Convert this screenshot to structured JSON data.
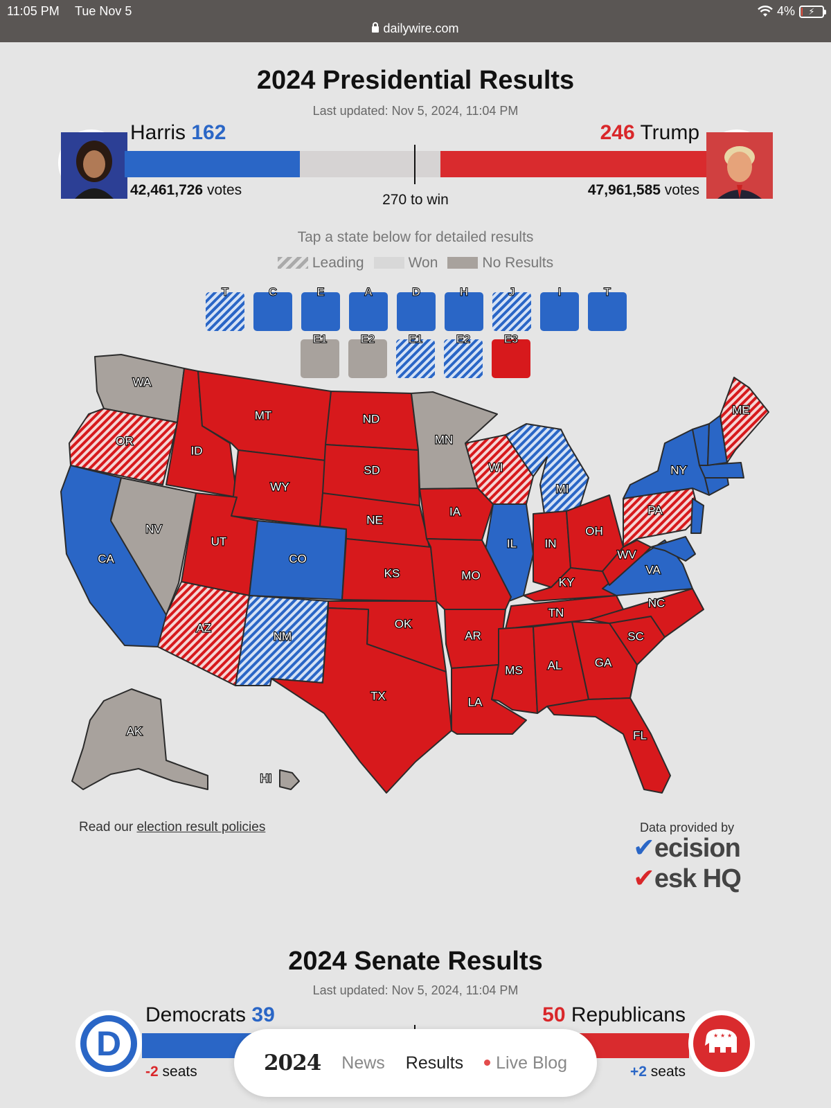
{
  "statusbar": {
    "time": "11:05 PM",
    "date": "Tue Nov 5",
    "battery": "4%",
    "battery_level": 0.04,
    "url": "dailywire.com"
  },
  "presidential": {
    "title": "2024 Presidential Results",
    "updated": "Last updated: Nov 5, 2024, 11:04 PM",
    "harris": {
      "name": "Harris",
      "ev": "162",
      "votes": "42,461,726",
      "votes_label": "votes",
      "ev_value": 162
    },
    "trump": {
      "name": "Trump",
      "ev": "246",
      "votes": "47,961,585",
      "votes_label": "votes",
      "ev_value": 246
    },
    "to_win": "270 to win",
    "total_ev": 538
  },
  "map": {
    "instruction": "Tap a state below for detailed results",
    "legend": {
      "leading": "Leading",
      "won": "Won",
      "none": "No Results"
    },
    "district_boxes_row1": [
      {
        "label": "T",
        "status": "blue-stripe"
      },
      {
        "label": "C",
        "status": "blue"
      },
      {
        "label": "E",
        "status": "blue"
      },
      {
        "label": "A",
        "status": "blue"
      },
      {
        "label": "D",
        "status": "blue"
      },
      {
        "label": "H",
        "status": "blue"
      },
      {
        "label": "J",
        "status": "blue-stripe"
      },
      {
        "label": "I",
        "status": "blue"
      },
      {
        "label": "T",
        "status": "blue"
      }
    ],
    "district_boxes_row2": [
      {
        "label": "E1",
        "status": "gray"
      },
      {
        "label": "E2",
        "status": "gray"
      },
      {
        "label": "E1",
        "status": "blue-stripe"
      },
      {
        "label": "E2",
        "status": "blue-stripe"
      },
      {
        "label": "E3",
        "status": "red"
      }
    ],
    "states": {
      "WA": "gray",
      "OR": "red-stripe",
      "CA": "blue",
      "NV": "gray",
      "ID": "red",
      "MT": "red",
      "WY": "red",
      "UT": "red",
      "AZ": "red-stripe",
      "CO": "blue",
      "NM": "blue-stripe",
      "ND": "red",
      "SD": "red",
      "NE": "red",
      "KS": "red",
      "OK": "red",
      "TX": "red",
      "MN": "gray",
      "IA": "red",
      "MO": "red",
      "AR": "red",
      "LA": "red",
      "WI": "red-stripe",
      "IL": "blue",
      "MI": "blue-stripe",
      "IN": "red",
      "OH": "red",
      "KY": "red",
      "TN": "red",
      "MS": "red",
      "AL": "red",
      "GA": "red",
      "FL": "red",
      "SC": "red",
      "NC": "red",
      "VA": "blue",
      "WV": "red",
      "PA": "red-stripe",
      "NY": "blue",
      "ME": "red-stripe",
      "AK": "gray",
      "HI": "gray"
    },
    "policies_prefix": "Read our",
    "policies_link": "election result policies",
    "provided_by": "Data provided by",
    "provider_line1": "ecision",
    "provider_line2": "esk HQ"
  },
  "senate": {
    "title": "2024 Senate Results",
    "updated": "Last updated: Nov 5, 2024, 11:04 PM",
    "dem": {
      "name": "Democrats",
      "seats": "39",
      "change": "-2",
      "change_label": "seats",
      "seats_value": 39
    },
    "rep": {
      "name": "Republicans",
      "seats": "50",
      "change": "+2",
      "change_label": "seats",
      "seats_value": 50
    },
    "total_seats": 100
  },
  "nav": {
    "brand": "2024",
    "news": "News",
    "results": "Results",
    "live": "Live Blog"
  },
  "colors": {
    "dem": "#2a66c6",
    "rep": "#d7191c",
    "no_results": "#a8a29d",
    "background": "#e5e5e5"
  }
}
